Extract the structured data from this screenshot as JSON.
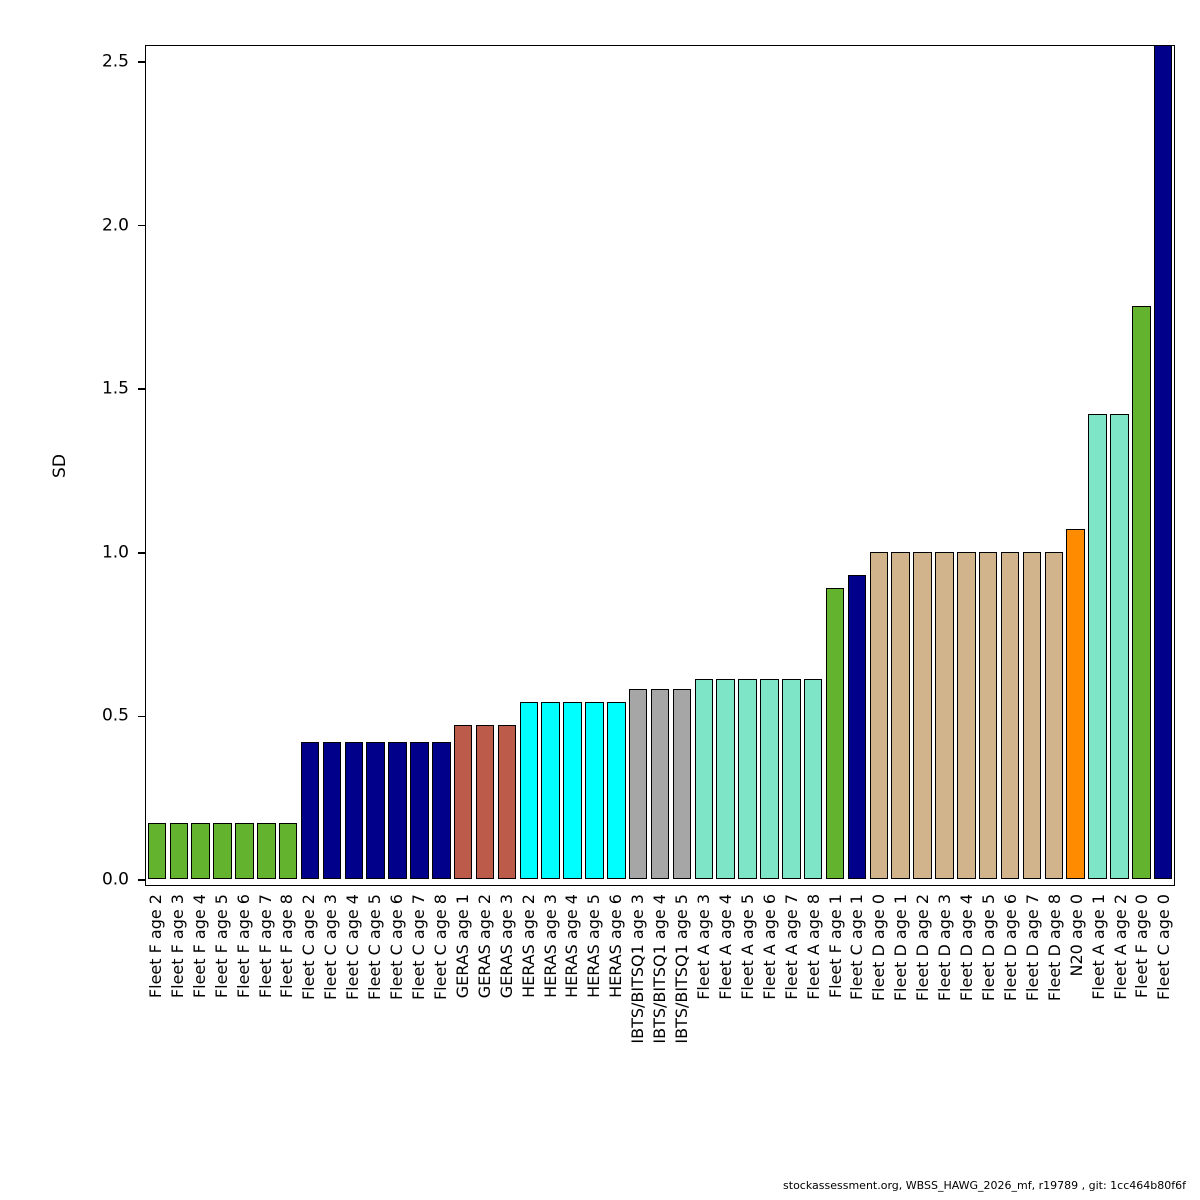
{
  "footer": {
    "text": "stockassessment.org, WBSS_HAWG_2026_mf, r19789 , git: 1cc464b80f6f"
  },
  "chart_data": {
    "type": "bar",
    "title": "",
    "xlabel": "",
    "ylabel": "SD",
    "ylim": [
      0,
      2.5
    ],
    "yticks": [
      0.0,
      0.5,
      1.0,
      1.5,
      2.0,
      2.5
    ],
    "grid": false,
    "legend": "none",
    "palette": {
      "fleetF": "#63b32e",
      "fleetC": "#00008b",
      "geras": "#bd5b4b",
      "heras": "#00ffff",
      "ibts": "#a6a6a6",
      "fleetA": "#7ee6c6",
      "fleetD": "#d2b48c",
      "n20": "#ff8c00"
    },
    "bars": [
      {
        "label": "Fleet F age 2",
        "value": 0.17,
        "group": "fleetF"
      },
      {
        "label": "Fleet F age 3",
        "value": 0.17,
        "group": "fleetF"
      },
      {
        "label": "Fleet F age 4",
        "value": 0.17,
        "group": "fleetF"
      },
      {
        "label": "Fleet F age 5",
        "value": 0.17,
        "group": "fleetF"
      },
      {
        "label": "Fleet F age 6",
        "value": 0.17,
        "group": "fleetF"
      },
      {
        "label": "Fleet F age 7",
        "value": 0.17,
        "group": "fleetF"
      },
      {
        "label": "Fleet F age 8",
        "value": 0.17,
        "group": "fleetF"
      },
      {
        "label": "Fleet C age 2",
        "value": 0.42,
        "group": "fleetC"
      },
      {
        "label": "Fleet C age 3",
        "value": 0.42,
        "group": "fleetC"
      },
      {
        "label": "Fleet C age 4",
        "value": 0.42,
        "group": "fleetC"
      },
      {
        "label": "Fleet C age 5",
        "value": 0.42,
        "group": "fleetC"
      },
      {
        "label": "Fleet C age 6",
        "value": 0.42,
        "group": "fleetC"
      },
      {
        "label": "Fleet C age 7",
        "value": 0.42,
        "group": "fleetC"
      },
      {
        "label": "Fleet C age 8",
        "value": 0.42,
        "group": "fleetC"
      },
      {
        "label": "GERAS age 1",
        "value": 0.47,
        "group": "geras"
      },
      {
        "label": "GERAS age 2",
        "value": 0.47,
        "group": "geras"
      },
      {
        "label": "GERAS age 3",
        "value": 0.47,
        "group": "geras"
      },
      {
        "label": "HERAS age 2",
        "value": 0.54,
        "group": "heras"
      },
      {
        "label": "HERAS age 3",
        "value": 0.54,
        "group": "heras"
      },
      {
        "label": "HERAS age 4",
        "value": 0.54,
        "group": "heras"
      },
      {
        "label": "HERAS age 5",
        "value": 0.54,
        "group": "heras"
      },
      {
        "label": "HERAS age 6",
        "value": 0.54,
        "group": "heras"
      },
      {
        "label": "IBTS/BITSQ1 age 3",
        "value": 0.58,
        "group": "ibts"
      },
      {
        "label": "IBTS/BITSQ1 age 4",
        "value": 0.58,
        "group": "ibts"
      },
      {
        "label": "IBTS/BITSQ1 age 5",
        "value": 0.58,
        "group": "ibts"
      },
      {
        "label": "Fleet A age 3",
        "value": 0.61,
        "group": "fleetA"
      },
      {
        "label": "Fleet A age 4",
        "value": 0.61,
        "group": "fleetA"
      },
      {
        "label": "Fleet A age 5",
        "value": 0.61,
        "group": "fleetA"
      },
      {
        "label": "Fleet A age 6",
        "value": 0.61,
        "group": "fleetA"
      },
      {
        "label": "Fleet A age 7",
        "value": 0.61,
        "group": "fleetA"
      },
      {
        "label": "Fleet A age 8",
        "value": 0.61,
        "group": "fleetA"
      },
      {
        "label": "Fleet F age 1",
        "value": 0.89,
        "group": "fleetF"
      },
      {
        "label": "Fleet C age 1",
        "value": 0.93,
        "group": "fleetC"
      },
      {
        "label": "Fleet D age 0",
        "value": 1.0,
        "group": "fleetD"
      },
      {
        "label": "Fleet D age 1",
        "value": 1.0,
        "group": "fleetD"
      },
      {
        "label": "Fleet D age 2",
        "value": 1.0,
        "group": "fleetD"
      },
      {
        "label": "Fleet D age 3",
        "value": 1.0,
        "group": "fleetD"
      },
      {
        "label": "Fleet D age 4",
        "value": 1.0,
        "group": "fleetD"
      },
      {
        "label": "Fleet D age 5",
        "value": 1.0,
        "group": "fleetD"
      },
      {
        "label": "Fleet D age 6",
        "value": 1.0,
        "group": "fleetD"
      },
      {
        "label": "Fleet D age 7",
        "value": 1.0,
        "group": "fleetD"
      },
      {
        "label": "Fleet D age 8",
        "value": 1.0,
        "group": "fleetD"
      },
      {
        "label": "N20 age 0",
        "value": 1.07,
        "group": "n20"
      },
      {
        "label": "Fleet A age 1",
        "value": 1.42,
        "group": "fleetA"
      },
      {
        "label": "Fleet A age 2",
        "value": 1.42,
        "group": "fleetA"
      },
      {
        "label": "Fleet F age 0",
        "value": 1.75,
        "group": "fleetF"
      },
      {
        "label": "Fleet C age 0",
        "value": 2.56,
        "group": "fleetC"
      }
    ]
  }
}
